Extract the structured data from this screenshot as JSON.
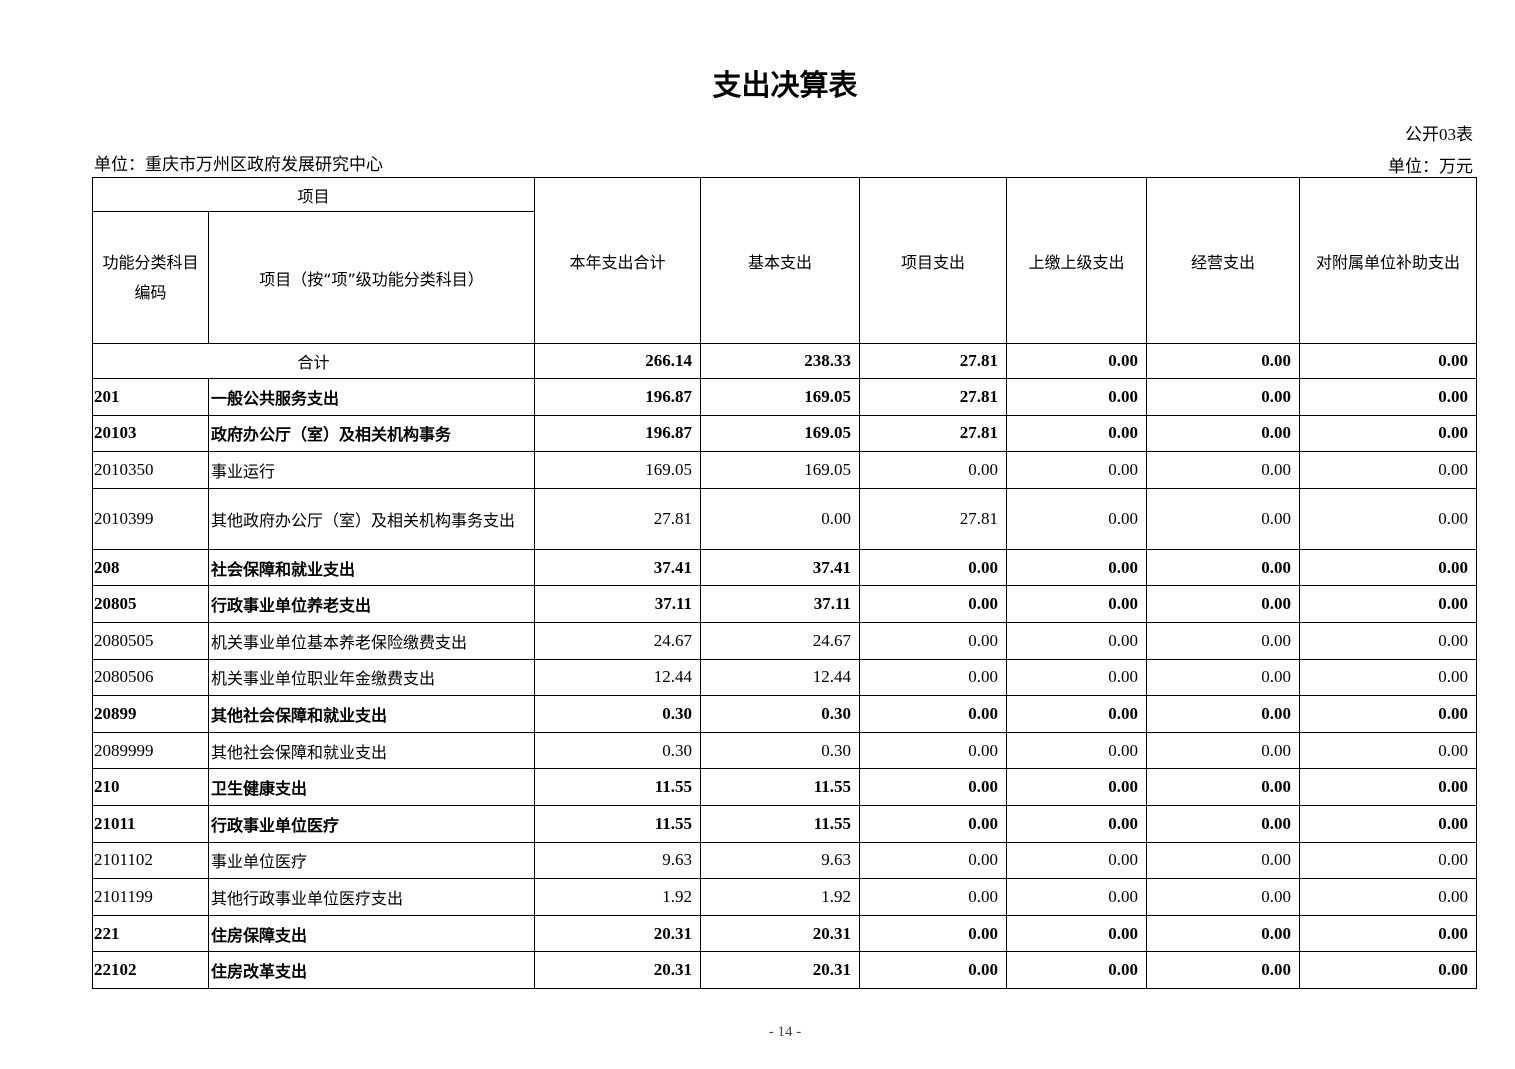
{
  "title": "支出决算表",
  "table_no": "公开03表",
  "unit_org": "单位：重庆市万州区政府发展研究中心",
  "unit_money": "单位：万元",
  "headers": {
    "project": "项目",
    "code": "功能分类科目编码",
    "name": "项目（按“项”级功能分类科目）",
    "cols": [
      "本年支出合计",
      "基本支出",
      "项目支出",
      "上缴上级支出",
      "经营支出",
      "对附属单位补助支出"
    ]
  },
  "total": {
    "label": "合计",
    "values": [
      "266.14",
      "238.33",
      "27.81",
      "0.00",
      "0.00",
      "0.00"
    ]
  },
  "rows": [
    {
      "code": "201",
      "name": "一般公共服务支出",
      "bold": true,
      "values": [
        "196.87",
        "169.05",
        "27.81",
        "0.00",
        "0.00",
        "0.00"
      ]
    },
    {
      "code": "20103",
      "name": "政府办公厅（室）及相关机构事务",
      "bold": true,
      "values": [
        "196.87",
        "169.05",
        "27.81",
        "0.00",
        "0.00",
        "0.00"
      ]
    },
    {
      "code": "2010350",
      "name": "事业运行",
      "bold": false,
      "values": [
        "169.05",
        "169.05",
        "0.00",
        "0.00",
        "0.00",
        "0.00"
      ]
    },
    {
      "code": "2010399",
      "name": "其他政府办公厅（室）及相关机构事务支出",
      "bold": false,
      "values": [
        "27.81",
        "0.00",
        "27.81",
        "0.00",
        "0.00",
        "0.00"
      ]
    },
    {
      "code": "208",
      "name": "社会保障和就业支出",
      "bold": true,
      "values": [
        "37.41",
        "37.41",
        "0.00",
        "0.00",
        "0.00",
        "0.00"
      ]
    },
    {
      "code": "20805",
      "name": "行政事业单位养老支出",
      "bold": true,
      "values": [
        "37.11",
        "37.11",
        "0.00",
        "0.00",
        "0.00",
        "0.00"
      ]
    },
    {
      "code": "2080505",
      "name": "机关事业单位基本养老保险缴费支出",
      "bold": false,
      "values": [
        "24.67",
        "24.67",
        "0.00",
        "0.00",
        "0.00",
        "0.00"
      ]
    },
    {
      "code": "2080506",
      "name": "机关事业单位职业年金缴费支出",
      "bold": false,
      "values": [
        "12.44",
        "12.44",
        "0.00",
        "0.00",
        "0.00",
        "0.00"
      ]
    },
    {
      "code": "20899",
      "name": "其他社会保障和就业支出",
      "bold": true,
      "values": [
        "0.30",
        "0.30",
        "0.00",
        "0.00",
        "0.00",
        "0.00"
      ]
    },
    {
      "code": "2089999",
      "name": "其他社会保障和就业支出",
      "bold": false,
      "values": [
        "0.30",
        "0.30",
        "0.00",
        "0.00",
        "0.00",
        "0.00"
      ]
    },
    {
      "code": "210",
      "name": "卫生健康支出",
      "bold": true,
      "values": [
        "11.55",
        "11.55",
        "0.00",
        "0.00",
        "0.00",
        "0.00"
      ]
    },
    {
      "code": "21011",
      "name": "行政事业单位医疗",
      "bold": true,
      "values": [
        "11.55",
        "11.55",
        "0.00",
        "0.00",
        "0.00",
        "0.00"
      ]
    },
    {
      "code": "2101102",
      "name": "事业单位医疗",
      "bold": false,
      "values": [
        "9.63",
        "9.63",
        "0.00",
        "0.00",
        "0.00",
        "0.00"
      ]
    },
    {
      "code": "2101199",
      "name": "其他行政事业单位医疗支出",
      "bold": false,
      "values": [
        "1.92",
        "1.92",
        "0.00",
        "0.00",
        "0.00",
        "0.00"
      ]
    },
    {
      "code": "221",
      "name": "住房保障支出",
      "bold": true,
      "values": [
        "20.31",
        "20.31",
        "0.00",
        "0.00",
        "0.00",
        "0.00"
      ]
    },
    {
      "code": "22102",
      "name": "住房改革支出",
      "bold": true,
      "values": [
        "20.31",
        "20.31",
        "0.00",
        "0.00",
        "0.00",
        "0.00"
      ]
    }
  ],
  "page_number": "- 14 -"
}
